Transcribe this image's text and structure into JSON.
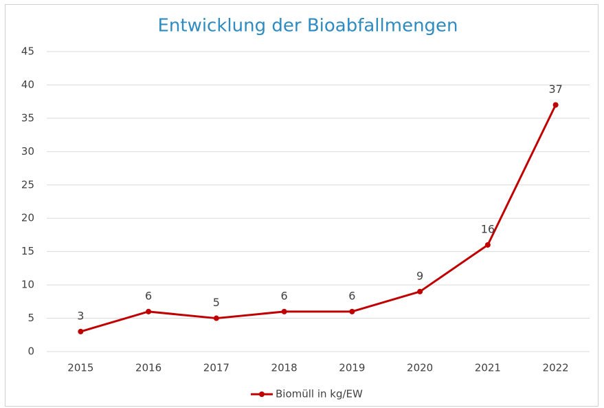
{
  "chart_data": {
    "type": "line",
    "title": "Entwicklung der Bioabfallmengen",
    "categories": [
      "2015",
      "2016",
      "2017",
      "2018",
      "2019",
      "2020",
      "2021",
      "2022"
    ],
    "series": [
      {
        "name": "Biomüll in kg/EW",
        "color": "#c00000",
        "values": [
          3,
          6,
          5,
          6,
          6,
          9,
          16,
          37
        ]
      }
    ],
    "ylim": [
      0,
      45
    ],
    "yticks": [
      0,
      5,
      10,
      15,
      20,
      25,
      30,
      35,
      40,
      45
    ],
    "grid": true,
    "legend": "bottom"
  }
}
